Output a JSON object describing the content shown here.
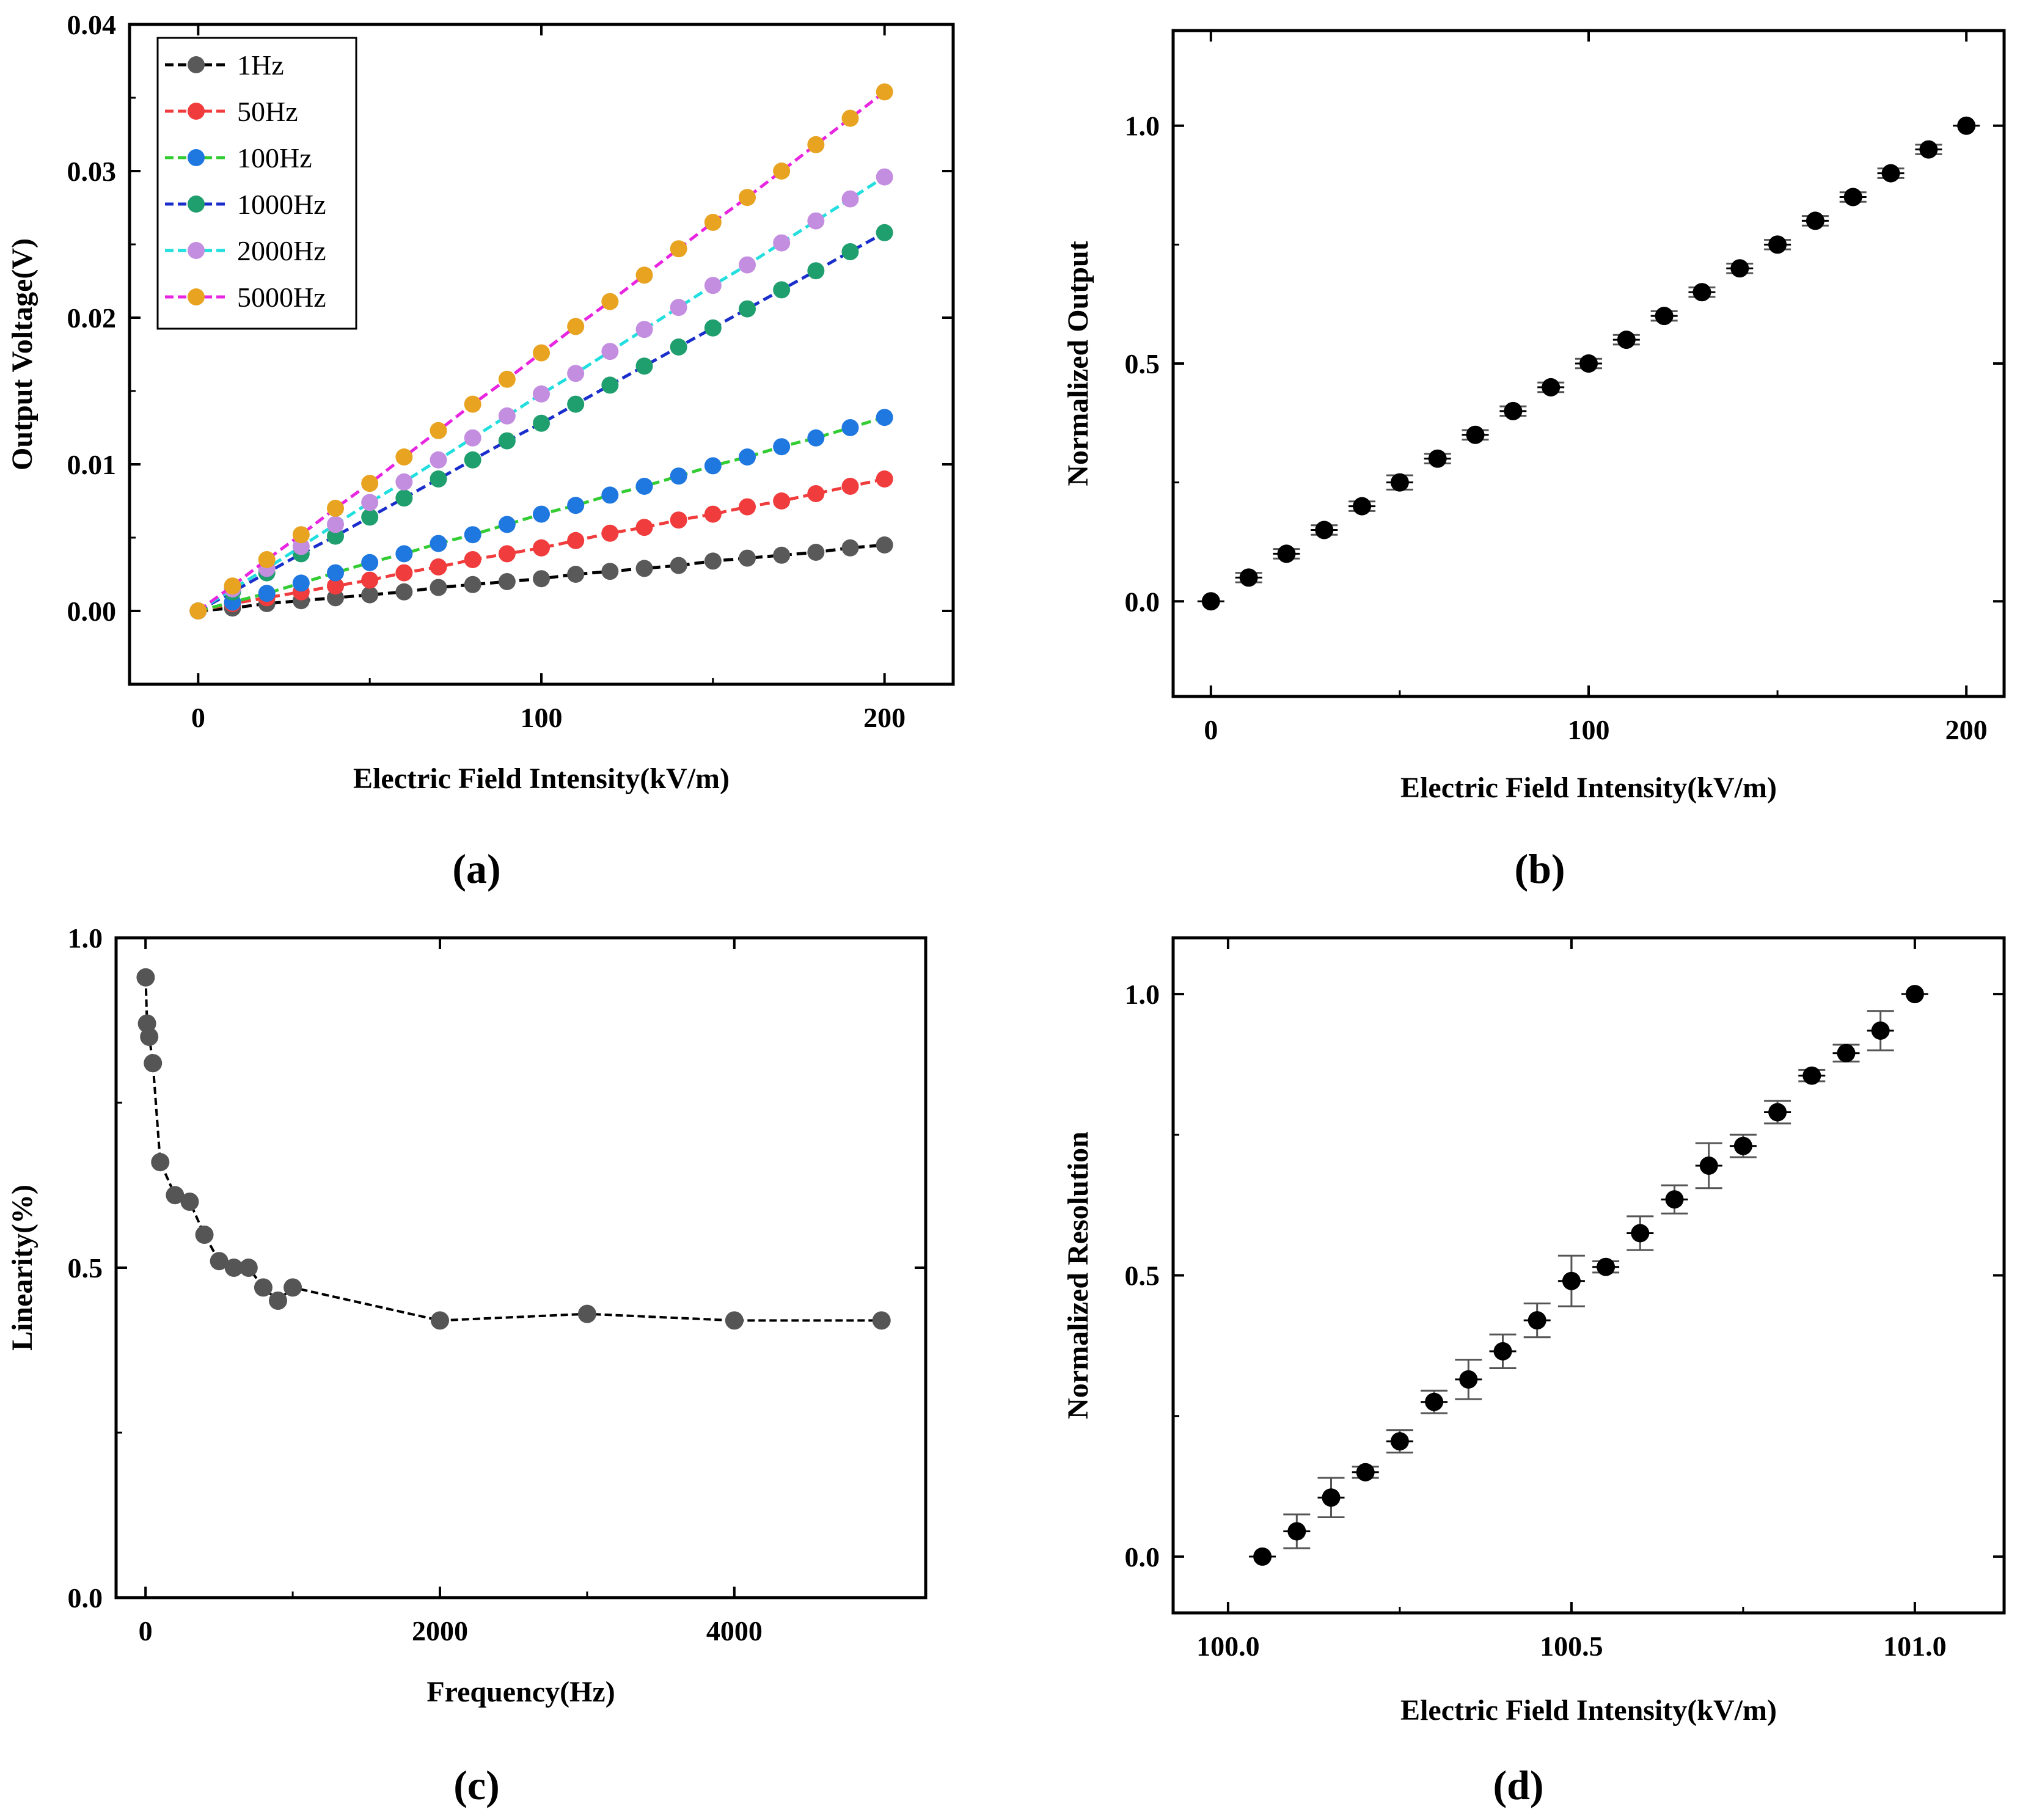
{
  "panel_labels": [
    "(a)",
    "(b)",
    "(c)",
    "(d)"
  ],
  "chart_data": [
    {
      "panel": "(a)",
      "type": "line",
      "xlabel": "Electric Field Intensity(kV/m)",
      "ylabel": "Output Voltage(V)",
      "xlim": [
        -20,
        220
      ],
      "ylim": [
        -0.005,
        0.04
      ],
      "xticks": [
        0,
        100,
        200
      ],
      "yticks": [
        0.0,
        0.01,
        0.02,
        0.03,
        0.04
      ],
      "ytick_labels": [
        "0.00",
        "0.01",
        "0.02",
        "0.03",
        "0.04"
      ],
      "legend_position": "top-left",
      "x": [
        0,
        10,
        20,
        30,
        40,
        50,
        60,
        70,
        80,
        90,
        100,
        110,
        120,
        130,
        140,
        150,
        160,
        170,
        180,
        190,
        200
      ],
      "series": [
        {
          "name": "1Hz",
          "marker_color": "#595959",
          "line_color": "#000000",
          "values": [
            0.0,
            0.0002,
            0.0005,
            0.0007,
            0.0009,
            0.0011,
            0.0013,
            0.0016,
            0.0018,
            0.002,
            0.0022,
            0.0025,
            0.0027,
            0.0029,
            0.0031,
            0.0034,
            0.0036,
            0.0038,
            0.004,
            0.0043,
            0.0045
          ]
        },
        {
          "name": "50Hz",
          "marker_color": "#f03c3c",
          "line_color": "#f03c3c",
          "values": [
            0.0,
            0.0005,
            0.0009,
            0.0013,
            0.0017,
            0.0021,
            0.0026,
            0.003,
            0.0035,
            0.0039,
            0.0043,
            0.0048,
            0.0053,
            0.0057,
            0.0062,
            0.0066,
            0.0071,
            0.0075,
            0.008,
            0.0085,
            0.009
          ]
        },
        {
          "name": "100Hz",
          "marker_color": "#1f77e0",
          "line_color": "#33cc33",
          "values": [
            0.0,
            0.0006,
            0.0012,
            0.0019,
            0.0026,
            0.0033,
            0.0039,
            0.0046,
            0.0052,
            0.0059,
            0.0066,
            0.0072,
            0.0079,
            0.0085,
            0.0092,
            0.0099,
            0.0105,
            0.0112,
            0.0118,
            0.0125,
            0.0132
          ]
        },
        {
          "name": "1000Hz",
          "marker_color": "#1f9e6e",
          "line_color": "#1a2ecc",
          "values": [
            0.0,
            0.0013,
            0.0026,
            0.0039,
            0.0051,
            0.0064,
            0.0077,
            0.009,
            0.0103,
            0.0116,
            0.0128,
            0.0141,
            0.0154,
            0.0167,
            0.018,
            0.0193,
            0.0206,
            0.0219,
            0.0232,
            0.0245,
            0.0258
          ]
        },
        {
          "name": "2000Hz",
          "marker_color": "#c38ee0",
          "line_color": "#22dede",
          "values": [
            0.0,
            0.0015,
            0.0029,
            0.0044,
            0.0059,
            0.0074,
            0.0088,
            0.0103,
            0.0118,
            0.0133,
            0.0148,
            0.0162,
            0.0177,
            0.0192,
            0.0207,
            0.0222,
            0.0236,
            0.0251,
            0.0266,
            0.0281,
            0.0296
          ]
        },
        {
          "name": "5000Hz",
          "marker_color": "#e8a321",
          "line_color": "#e825e0",
          "values": [
            0.0,
            0.0017,
            0.0035,
            0.0052,
            0.007,
            0.0087,
            0.0105,
            0.0123,
            0.0141,
            0.0158,
            0.0176,
            0.0194,
            0.0211,
            0.0229,
            0.0247,
            0.0265,
            0.0282,
            0.03,
            0.0318,
            0.0336,
            0.0354
          ]
        }
      ]
    },
    {
      "panel": "(b)",
      "type": "scatter",
      "xlabel": "Electric Field Intensity(kV/m)",
      "ylabel": "Normalized Output",
      "xlim": [
        -10,
        210
      ],
      "ylim": [
        -0.2,
        1.2
      ],
      "xticks": [
        0,
        100,
        200
      ],
      "yticks": [
        0.0,
        0.5,
        1.0
      ],
      "ytick_labels": [
        "0.0",
        "0.5",
        "1.0"
      ],
      "x": [
        0,
        10,
        20,
        30,
        40,
        50,
        60,
        70,
        80,
        90,
        100,
        110,
        120,
        130,
        140,
        150,
        160,
        170,
        180,
        190,
        200
      ],
      "y": [
        0.0,
        0.05,
        0.1,
        0.15,
        0.2,
        0.25,
        0.3,
        0.35,
        0.4,
        0.45,
        0.5,
        0.55,
        0.6,
        0.65,
        0.7,
        0.75,
        0.8,
        0.85,
        0.9,
        0.95,
        1.0
      ],
      "yerr": [
        0.0,
        0.01,
        0.01,
        0.01,
        0.01,
        0.015,
        0.01,
        0.01,
        0.01,
        0.01,
        0.01,
        0.01,
        0.01,
        0.01,
        0.01,
        0.01,
        0.01,
        0.01,
        0.01,
        0.01,
        0.0
      ]
    },
    {
      "panel": "(c)",
      "type": "line",
      "xlabel": "Frequency(Hz)",
      "ylabel": "Linearity(%)",
      "xlim": [
        -200,
        5300
      ],
      "ylim": [
        0.0,
        1.0
      ],
      "xticks": [
        0,
        2000,
        4000
      ],
      "yticks": [
        0.0,
        0.5,
        1.0
      ],
      "ytick_labels": [
        "0.0",
        "0.5",
        "1.0"
      ],
      "marker_color": "#555555",
      "x": [
        1,
        10,
        25,
        50,
        100,
        200,
        300,
        400,
        500,
        600,
        700,
        800,
        900,
        1000,
        2000,
        3000,
        4000,
        5000
      ],
      "y": [
        0.94,
        0.87,
        0.85,
        0.81,
        0.66,
        0.61,
        0.6,
        0.55,
        0.51,
        0.5,
        0.5,
        0.47,
        0.45,
        0.47,
        0.42,
        0.43,
        0.42,
        0.42
      ]
    },
    {
      "panel": "(d)",
      "type": "scatter",
      "xlabel": "Electric Field Intensity(kV/m)",
      "ylabel": "Normalized Resolution",
      "xlim": [
        99.92,
        101.13
      ],
      "ylim": [
        -0.1,
        1.1
      ],
      "xticks": [
        100.0,
        100.5,
        101.0
      ],
      "xtick_labels": [
        "100.0",
        "100.5",
        "101.0"
      ],
      "yticks": [
        0.0,
        0.5,
        1.0
      ],
      "ytick_labels": [
        "0.0",
        "0.5",
        "1.0"
      ],
      "x": [
        100.05,
        100.1,
        100.15,
        100.2,
        100.25,
        100.3,
        100.35,
        100.4,
        100.45,
        100.5,
        100.55,
        100.6,
        100.65,
        100.7,
        100.75,
        100.8,
        100.85,
        100.9,
        100.95,
        101.0
      ],
      "y": [
        0.0,
        0.045,
        0.105,
        0.15,
        0.205,
        0.275,
        0.315,
        0.365,
        0.42,
        0.49,
        0.515,
        0.575,
        0.635,
        0.695,
        0.73,
        0.79,
        0.855,
        0.895,
        0.935,
        1.0
      ],
      "yerr": [
        0.0,
        0.03,
        0.035,
        0.01,
        0.02,
        0.02,
        0.035,
        0.03,
        0.03,
        0.045,
        0.01,
        0.03,
        0.025,
        0.04,
        0.02,
        0.02,
        0.01,
        0.015,
        0.035,
        0.0
      ]
    }
  ]
}
